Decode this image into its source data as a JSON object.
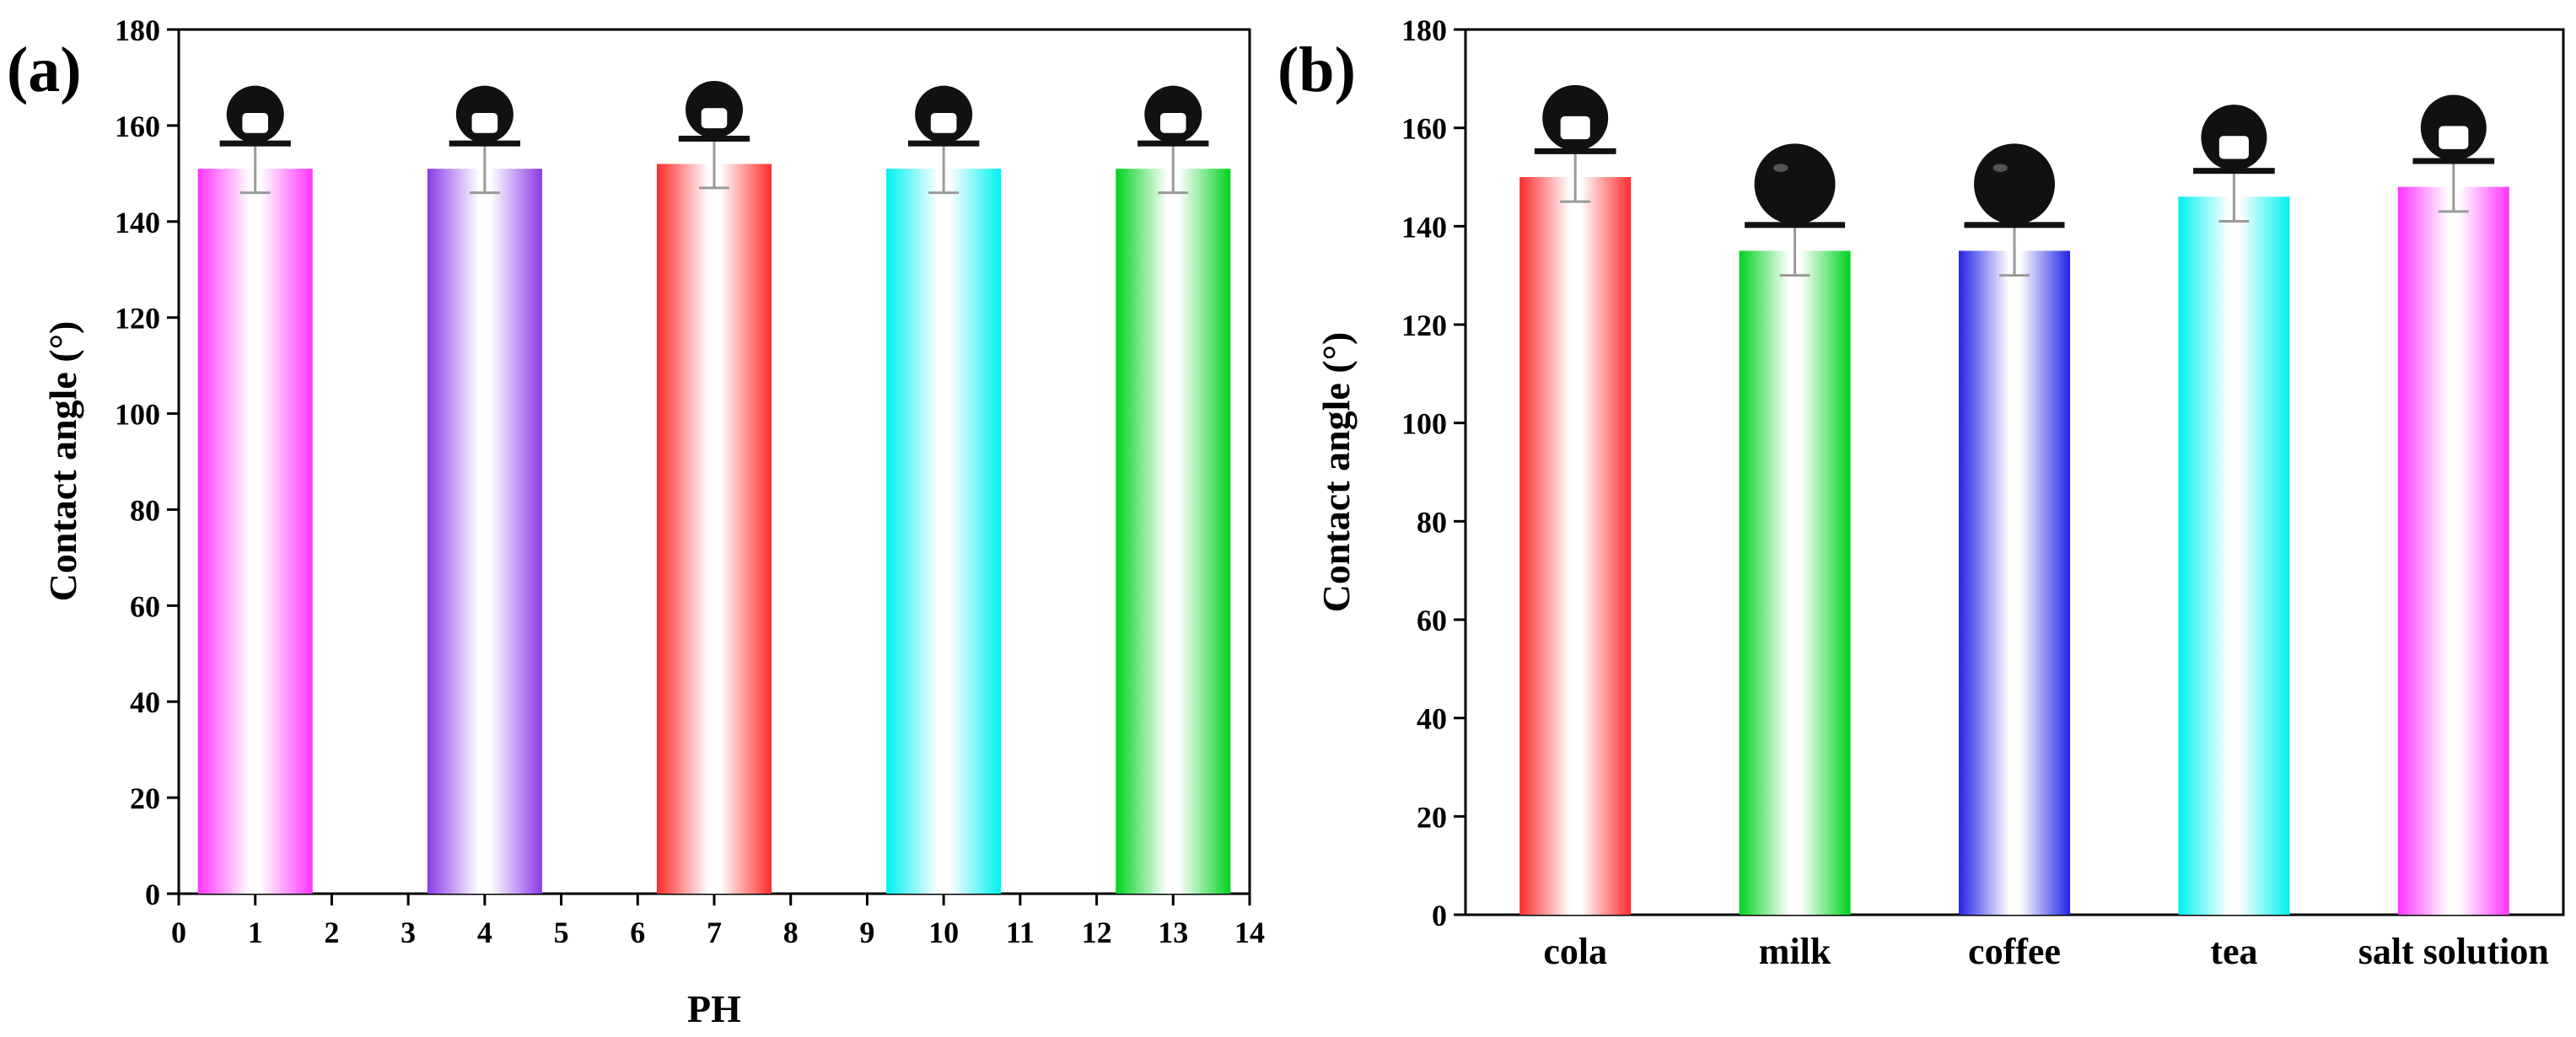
{
  "chart_data": [
    {
      "id": "a",
      "type": "bar",
      "panel_label": "(a)",
      "title": "",
      "xlabel": "PH",
      "ylabel": "Contact angle (°)",
      "x": [
        1,
        4,
        7,
        10,
        13
      ],
      "values": [
        151,
        151,
        152,
        151,
        151
      ],
      "errors": [
        5,
        5,
        5,
        5,
        5
      ],
      "bar_width": 1.5,
      "xlim": [
        0,
        14
      ],
      "ylim": [
        0,
        180
      ],
      "xticks": [
        0,
        1,
        2,
        3,
        4,
        5,
        6,
        7,
        8,
        9,
        10,
        11,
        12,
        13,
        14
      ],
      "yticks": [
        0,
        20,
        40,
        60,
        80,
        100,
        120,
        140,
        160,
        180
      ],
      "colors": [
        "#ff33ff",
        "#8a3ae8",
        "#ff2b2b",
        "#00f0f0",
        "#00d21e"
      ],
      "droplet_icon": "water-droplet-icon",
      "grid": false
    },
    {
      "id": "b",
      "type": "bar",
      "panel_label": "(b)",
      "title": "",
      "xlabel": "",
      "ylabel": "Contact angle (°)",
      "categories": [
        "cola",
        "milk",
        "coffee",
        "tea",
        "salt solution"
      ],
      "values": [
        150,
        135,
        135,
        146,
        148
      ],
      "errors": [
        5,
        5,
        5,
        5,
        5
      ],
      "ylim": [
        0,
        180
      ],
      "yticks": [
        0,
        20,
        40,
        60,
        80,
        100,
        120,
        140,
        160,
        180
      ],
      "colors": [
        "#ff2b2b",
        "#00d21e",
        "#2222e6",
        "#00f0f0",
        "#ff33ff"
      ],
      "droplet_icon": "liquid-droplet-icon",
      "grid": false
    }
  ]
}
